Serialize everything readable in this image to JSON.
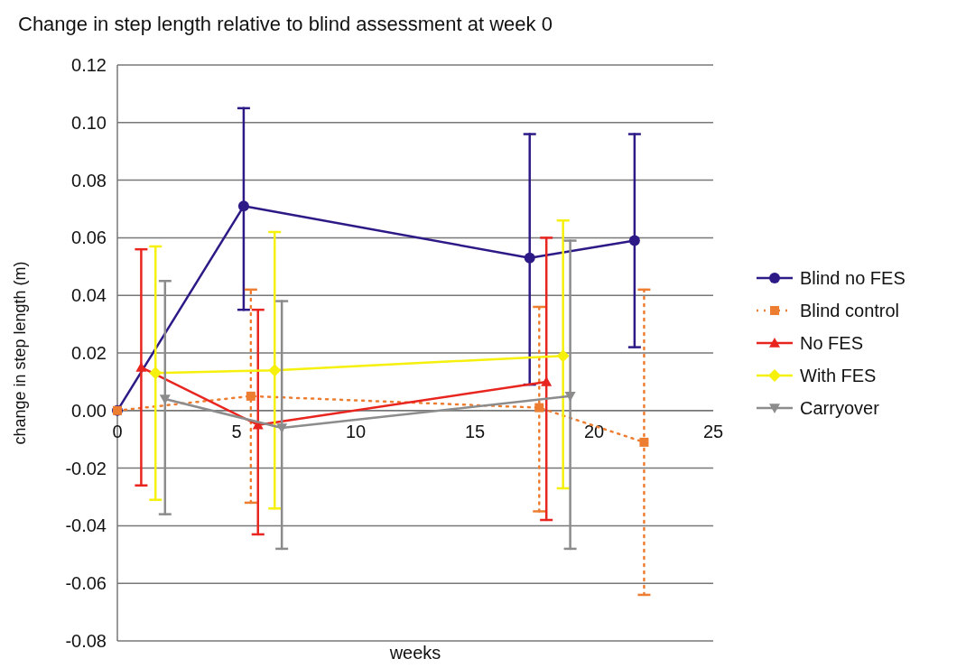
{
  "chart_data": {
    "type": "line",
    "title": "Change in step length relative to blind assessment at week 0",
    "xlabel": "weeks",
    "ylabel": "change in step length (m)",
    "xlim": [
      0,
      25
    ],
    "xticks": [
      0,
      5,
      10,
      15,
      20,
      25
    ],
    "ylim": [
      -0.08,
      0.12
    ],
    "yticks": [
      {
        "value": -0.08,
        "label": "-0.08"
      },
      {
        "value": -0.06,
        "label": "-0.06"
      },
      {
        "value": -0.04,
        "label": "-0.04"
      },
      {
        "value": -0.02,
        "label": "-0.02"
      },
      {
        "value": 0,
        "label": "0.00"
      },
      {
        "value": 0.02,
        "label": "0.02"
      },
      {
        "value": 0.04,
        "label": "0.04"
      },
      {
        "value": 0.06,
        "label": "0.06"
      },
      {
        "value": 0.08,
        "label": "0.08"
      },
      {
        "value": 0.1,
        "label": "0.10"
      },
      {
        "value": 0.12,
        "label": "0.12"
      }
    ],
    "grid": "y",
    "legend": "right",
    "series": [
      {
        "name": "Blind no FES",
        "color": "#2e1a87",
        "marker": "circle",
        "line_style": "solid",
        "x": [
          0,
          5.3,
          17.3,
          21.7
        ],
        "values": [
          0,
          0.071,
          0.053,
          0.059
        ],
        "errors": [
          null,
          [
            0.035,
            0.105
          ],
          [
            0.009,
            0.096
          ],
          [
            0.022,
            0.096
          ]
        ]
      },
      {
        "name": "Blind control",
        "color": "#ed7d31",
        "marker": "square",
        "line_style": "dotted",
        "x": [
          0,
          5.6,
          17.7,
          22.1
        ],
        "values": [
          0,
          0.005,
          0.001,
          -0.011
        ],
        "errors": [
          null,
          [
            -0.032,
            0.042
          ],
          [
            -0.035,
            0.036
          ],
          [
            -0.064,
            0.042
          ]
        ]
      },
      {
        "name": "No FES",
        "color": "#e8251f",
        "marker": "triangle",
        "line_style": "solid",
        "x": [
          1.0,
          5.9,
          18.0
        ],
        "values": [
          0.015,
          -0.005,
          0.01
        ],
        "errors": [
          [
            -0.026,
            0.056
          ],
          [
            -0.043,
            0.035
          ],
          [
            -0.038,
            0.06
          ]
        ]
      },
      {
        "name": "With FES",
        "color": "#f5f00c",
        "marker": "diamond",
        "line_style": "solid",
        "x": [
          1.6,
          6.6,
          18.7
        ],
        "values": [
          0.013,
          0.014,
          0.019
        ],
        "errors": [
          [
            -0.031,
            0.057
          ],
          [
            -0.034,
            0.062
          ],
          [
            -0.027,
            0.066
          ]
        ]
      },
      {
        "name": "Carryover",
        "color": "#8c8c8c",
        "marker": "triangle-down",
        "line_style": "solid",
        "x": [
          2.0,
          6.9,
          19.0
        ],
        "values": [
          0.004,
          -0.006,
          0.005
        ],
        "errors": [
          [
            -0.036,
            0.045
          ],
          [
            -0.048,
            0.038
          ],
          [
            -0.048,
            0.059
          ]
        ]
      }
    ]
  }
}
